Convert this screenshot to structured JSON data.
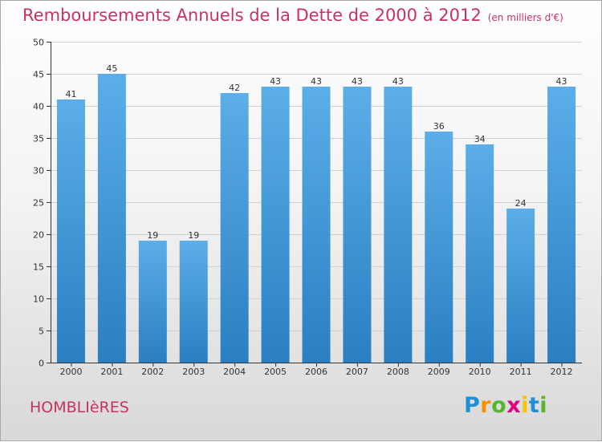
{
  "title": "Remboursements Annuels de la Dette de 2000 à 2012",
  "unit": "(en milliers d'€)",
  "commune": "HOMBLIèRES",
  "logo": {
    "letters": [
      "P",
      "r",
      "o",
      "x",
      "i",
      "t",
      "i"
    ]
  },
  "colors": {
    "title": "#c8325f",
    "bar_top": "#5caee8",
    "bar_bottom": "#2a7fc2",
    "axis": "#333333",
    "grid": "#d0d0d0"
  },
  "chart_data": {
    "type": "bar",
    "categories": [
      "2000",
      "2001",
      "2002",
      "2003",
      "2004",
      "2005",
      "2006",
      "2007",
      "2008",
      "2009",
      "2010",
      "2011",
      "2012"
    ],
    "values": [
      41,
      45,
      19,
      19,
      42,
      43,
      43,
      43,
      43,
      36,
      34,
      24,
      43
    ],
    "ylim": [
      0,
      50
    ],
    "yticks": [
      0,
      5,
      10,
      15,
      20,
      25,
      30,
      35,
      40,
      45,
      50
    ],
    "grid": true,
    "legend": "none"
  }
}
